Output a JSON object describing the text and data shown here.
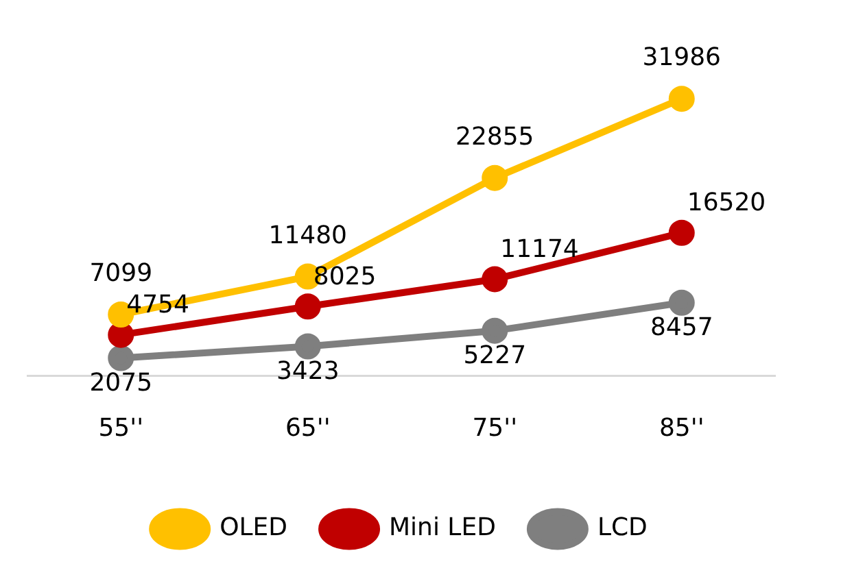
{
  "chart_data": {
    "type": "line",
    "categories": [
      "55''",
      "65''",
      "75''",
      "85''"
    ],
    "series": [
      {
        "name": "OLED",
        "color": "#ffc000",
        "values": [
          7099,
          11480,
          22855,
          31986
        ]
      },
      {
        "name": "Mini LED",
        "color": "#c00000",
        "values": [
          4754,
          8025,
          11174,
          16520
        ]
      },
      {
        "name": "LCD",
        "color": "#7f7f7f",
        "values": [
          2075,
          3423,
          5227,
          8457
        ]
      }
    ],
    "data_labels": true,
    "legend": "bottom",
    "marker": "circle",
    "grid": false,
    "tick_labels": "x"
  }
}
